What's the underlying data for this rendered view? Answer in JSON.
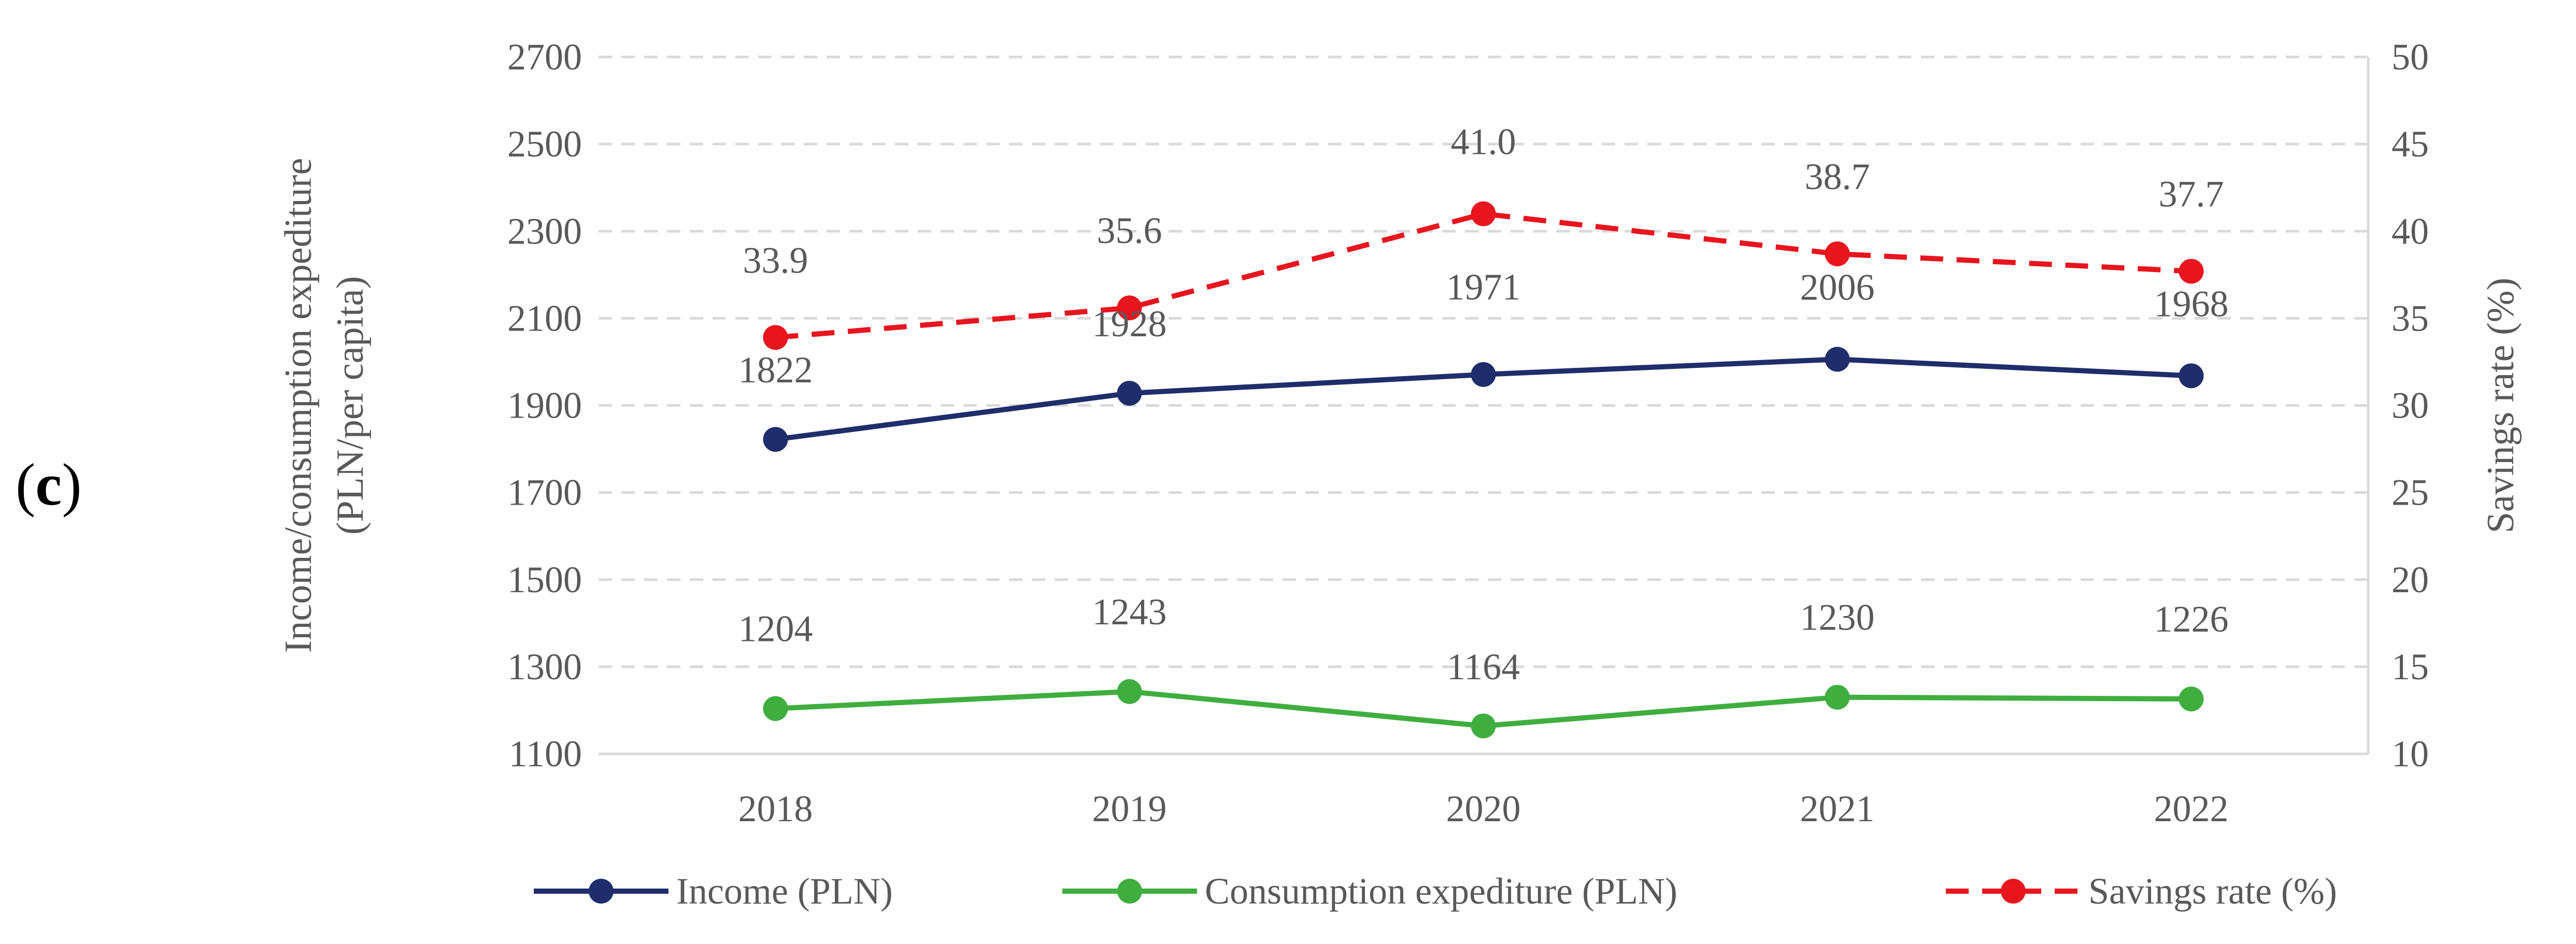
{
  "panel_label_open": "(",
  "panel_label_letter": "c",
  "panel_label_close": ")",
  "chart_data": {
    "type": "line",
    "categories": [
      "2018",
      "2019",
      "2020",
      "2021",
      "2022"
    ],
    "y_left": {
      "label_line1": "Income/consumption expediture",
      "label_line2": "(PLN/per capita)",
      "range": [
        1100,
        2700
      ],
      "ticks": [
        "2700",
        "2500",
        "2300",
        "2100",
        "1900",
        "1700",
        "1500",
        "1300",
        "1100"
      ]
    },
    "y_right": {
      "label": "Savings rate (%)",
      "range": [
        10,
        50
      ],
      "ticks": [
        "50",
        "45",
        "40",
        "35",
        "30",
        "25",
        "20",
        "15",
        "10"
      ]
    },
    "grid": true,
    "legend_position": "bottom",
    "series": [
      {
        "name": "Income (PLN)",
        "axis": "left",
        "color": "#1f2d6b",
        "dashed": false,
        "values": [
          1822,
          1928,
          1971,
          2006,
          1968
        ],
        "labels": [
          "1822",
          "1928",
          "1971",
          "2006",
          "1968"
        ]
      },
      {
        "name": "Consumption expediture (PLN)",
        "axis": "left",
        "color": "#3fae3f",
        "dashed": false,
        "values": [
          1204,
          1243,
          1164,
          1230,
          1226
        ],
        "labels": [
          "1204",
          "1243",
          "1164",
          "1230",
          "1226"
        ]
      },
      {
        "name": "Savings rate (%)",
        "axis": "right",
        "color": "#e8141e",
        "dashed": true,
        "values": [
          33.9,
          35.6,
          41.0,
          38.7,
          37.7
        ],
        "labels": [
          "33.9",
          "35.6",
          "41.0",
          "38.7",
          "37.7"
        ]
      }
    ]
  }
}
